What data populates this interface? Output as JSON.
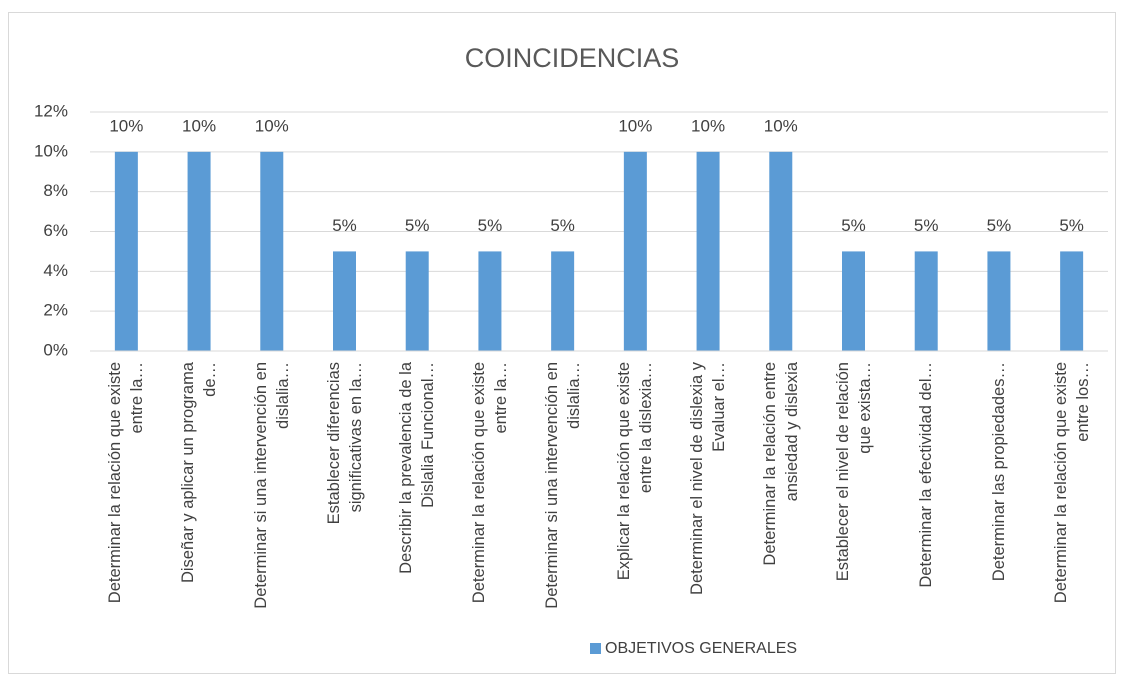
{
  "chart_data": {
    "type": "bar",
    "title": "COINCIDENCIAS",
    "categories": [
      "Determinar la relación que existe entre la…",
      "Diseñar y aplicar un programa de…",
      "Determinar si una intervención en dislalia…",
      "Establecer diferencias significativas en la…",
      "Describir la prevalencia de la Dislalia Funcional…",
      "Determinar la relación que existe entre la…",
      "Determinar si una intervención en dislalia…",
      "Explicar la relación que existe entre la dislexia…",
      "Determinar el nivel de dislexia y Evaluar el…",
      "Determinar la relación entre ansiedad y dislexia",
      "Establecer el nivel de relación que exista…",
      "Determinar la efectividad del…",
      "Determinar las propiedades…",
      "Determinar la relación que existe entre los…"
    ],
    "series": [
      {
        "name": "OBJETIVOS GENERALES",
        "color": "#5b9bd5",
        "values": [
          10,
          10,
          10,
          5,
          5,
          5,
          5,
          10,
          10,
          10,
          5,
          5,
          5,
          5
        ],
        "value_labels": [
          "10%",
          "10%",
          "10%",
          "5%",
          "5%",
          "5%",
          "5%",
          "10%",
          "10%",
          "10%",
          "5%",
          "5%",
          "5%",
          "5%"
        ]
      }
    ],
    "ylim": [
      0,
      12
    ],
    "yticks": [
      {
        "value": 0,
        "label": "0%"
      },
      {
        "value": 2,
        "label": "2%"
      },
      {
        "value": 4,
        "label": "4%"
      },
      {
        "value": 6,
        "label": "6%"
      },
      {
        "value": 8,
        "label": "8%"
      },
      {
        "value": 10,
        "label": "10%"
      },
      {
        "value": 12,
        "label": "12%"
      }
    ],
    "grid": true,
    "legend": "bottom"
  }
}
